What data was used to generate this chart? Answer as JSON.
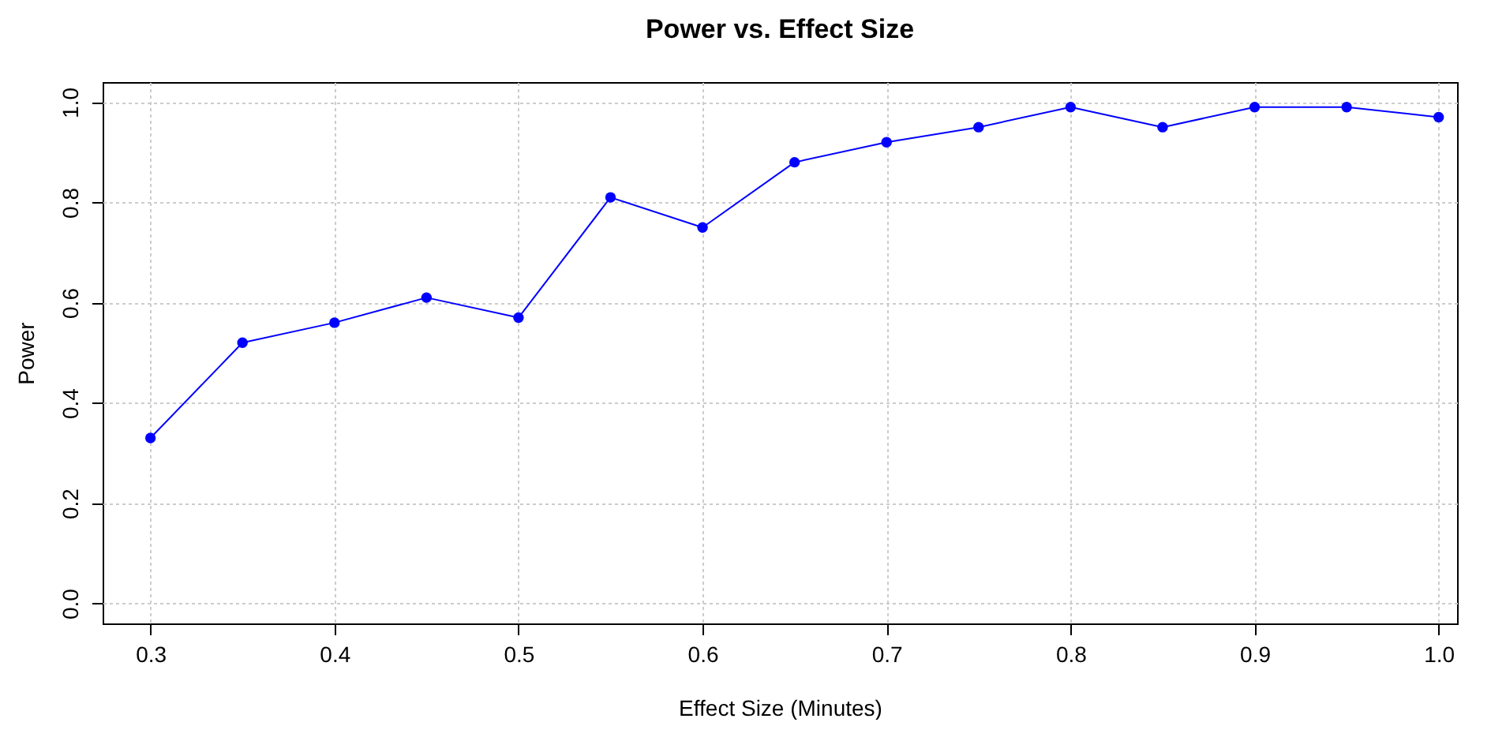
{
  "chart_data": {
    "type": "line",
    "title": "Power vs. Effect Size",
    "xlabel": "Effect Size (Minutes)",
    "ylabel": "Power",
    "x": [
      0.3,
      0.35,
      0.4,
      0.45,
      0.5,
      0.55,
      0.6,
      0.65,
      0.7,
      0.75,
      0.8,
      0.85,
      0.9,
      0.95,
      1.0
    ],
    "series": [
      {
        "color": "#0000ff",
        "values": [
          0.33,
          0.52,
          0.56,
          0.61,
          0.57,
          0.81,
          0.75,
          0.88,
          0.92,
          0.95,
          0.99,
          0.95,
          0.99,
          0.99,
          0.97
        ]
      }
    ],
    "xlim": [
      0.274,
      1.01
    ],
    "xticks": [
      0.3,
      0.4,
      0.5,
      0.6,
      0.7,
      0.8,
      0.9,
      {
        "value": 1,
        "label": "1.0"
      }
    ],
    "ylim": [
      -0.04,
      1.04
    ],
    "yticks": [
      {
        "value": 0,
        "label": "0.0"
      },
      0.2,
      0.4,
      0.6,
      0.8,
      {
        "value": 1,
        "label": "1.0"
      }
    ],
    "grid": true,
    "marker": "circle",
    "line_style": "solid"
  }
}
